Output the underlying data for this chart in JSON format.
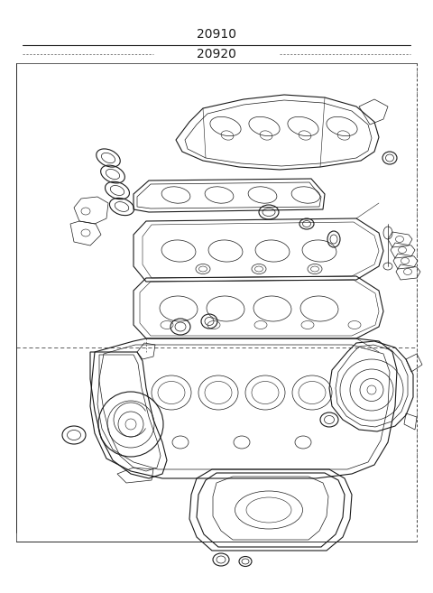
{
  "title_line1": "20910",
  "title_line2": "20920",
  "bg_color": "#ffffff",
  "line_color": "#1a1a1a",
  "figsize": [
    4.8,
    6.57
  ],
  "dpi": 100,
  "border_color": "#444444",
  "lw_thick": 1.2,
  "lw_med": 0.8,
  "lw_thin": 0.5,
  "lw_vt": 0.4
}
